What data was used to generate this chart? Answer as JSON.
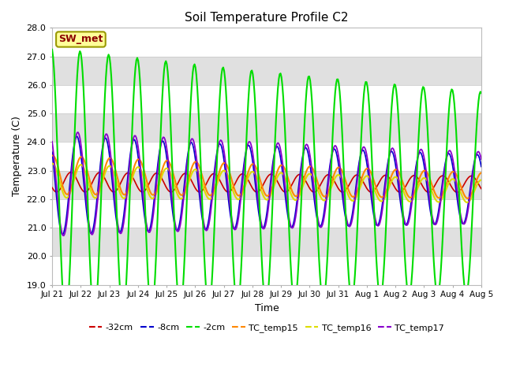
{
  "title": "Soil Temperature Profile C2",
  "xlabel": "Time",
  "ylabel": "Temperature (C)",
  "ylim": [
    19.0,
    28.0
  ],
  "yticks": [
    19.0,
    20.0,
    21.0,
    22.0,
    23.0,
    24.0,
    25.0,
    26.0,
    27.0,
    28.0
  ],
  "xtick_labels": [
    "Jul 21",
    "Jul 22",
    "Jul 23",
    "Jul 24",
    "Jul 25",
    "Jul 26",
    "Jul 27",
    "Jul 28",
    "Jul 29",
    "Jul 30",
    "Jul 31",
    "Aug 1",
    "Aug 2",
    "Aug 3",
    "Aug 4",
    "Aug 5"
  ],
  "sw_met_label": "SW_met",
  "sw_met_facecolor": "#FFFF99",
  "sw_met_edgecolor": "#999900",
  "sw_met_textcolor": "#8B0000",
  "line_colors": {
    "minus32cm": "#CC0000",
    "minus8cm": "#0000CC",
    "minus2cm": "#00DD00",
    "TC_temp15": "#FF8800",
    "TC_temp16": "#DDDD00",
    "TC_temp17": "#8800CC"
  },
  "bg_color": "#FFFFFF",
  "plot_bg_color": "#E0E0E0",
  "band_color": "#FFFFFF",
  "n_points": 480
}
